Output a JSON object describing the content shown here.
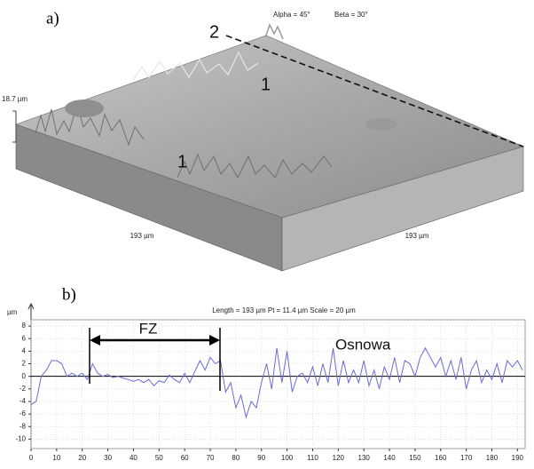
{
  "surface": {
    "panel_label": "a)",
    "alpha": "Alpha = 45°",
    "beta": "Beta = 30°",
    "z_scale": "18.7 µm",
    "x_size": "193 µm",
    "y_size": "193 µm",
    "profile_marker": "2",
    "region_labels": [
      "1",
      "1"
    ]
  },
  "chart_data": {
    "type": "line",
    "panel_label": "b)",
    "title": "Length = 193 µm  Pt = 11.4 µm  Scale = 20 µm",
    "y_unit": "µm",
    "annotations": [
      "FZ",
      "Osnowa"
    ],
    "xlim": [
      0,
      193
    ],
    "ylim": [
      -11.5,
      9
    ],
    "xticks": [
      0,
      10,
      20,
      30,
      40,
      50,
      60,
      70,
      80,
      90,
      100,
      110,
      120,
      130,
      140,
      150,
      160,
      170,
      180,
      190
    ],
    "yticks": [
      8,
      6,
      4,
      2,
      0,
      -2,
      -4,
      -6,
      -8,
      -10
    ],
    "grid": true,
    "x": [
      0,
      2,
      4,
      6,
      8,
      10,
      12,
      14,
      16,
      18,
      20,
      22,
      24,
      26,
      28,
      30,
      32,
      34,
      36,
      38,
      40,
      42,
      44,
      46,
      48,
      50,
      52,
      54,
      56,
      58,
      60,
      62,
      64,
      66,
      68,
      70,
      72,
      74,
      76,
      78,
      80,
      82,
      84,
      86,
      88,
      90,
      92,
      94,
      96,
      98,
      100,
      102,
      104,
      106,
      108,
      110,
      112,
      114,
      116,
      118,
      120,
      122,
      124,
      126,
      128,
      130,
      132,
      134,
      136,
      138,
      140,
      142,
      144,
      146,
      148,
      150,
      152,
      154,
      156,
      158,
      160,
      162,
      164,
      166,
      168,
      170,
      172,
      174,
      176,
      178,
      180,
      182,
      184,
      186,
      188,
      190,
      192
    ],
    "series": [
      {
        "color": "#6b6bd6",
        "values": [
          -4.5,
          -4,
          0,
          1,
          2.5,
          2.5,
          2,
          0,
          0.5,
          0,
          0.5,
          -0.5,
          2,
          0.5,
          0,
          0.3,
          -0.2,
          0,
          -0.3,
          -0.5,
          -0.8,
          -0.5,
          -1,
          -0.5,
          -1.5,
          -0.7,
          -1,
          0.2,
          -0.5,
          -1,
          0.5,
          -1,
          0.8,
          2.5,
          1,
          3,
          2,
          2.5,
          -2.5,
          -1,
          -5,
          -3,
          -6.5,
          -4,
          -5,
          -1,
          2,
          -2,
          4.5,
          -1,
          4,
          -2.5,
          0,
          0.5,
          -1,
          1.5,
          -1.5,
          2,
          -1,
          4.5,
          -1.5,
          2.5,
          -1,
          1,
          -1,
          2.5,
          -1.5,
          1,
          -2,
          1.5,
          -0.5,
          3,
          -1,
          2.5,
          2,
          0,
          3,
          4.5,
          3,
          1.5,
          3,
          0,
          2.5,
          -0.5,
          3,
          -2,
          1,
          2.5,
          -1,
          1,
          -0.5,
          2,
          -1,
          2.5,
          1.5,
          2.5,
          1
        ]
      }
    ]
  }
}
